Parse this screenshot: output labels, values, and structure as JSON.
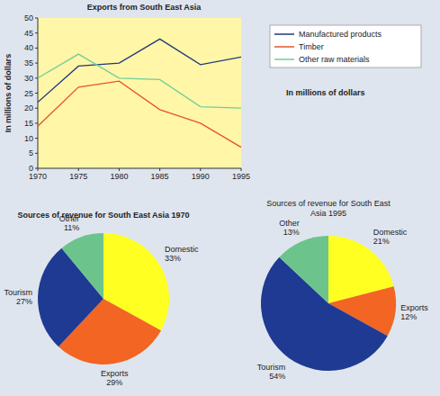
{
  "chart_data": [
    {
      "type": "line",
      "title": "Exports from South East Asia",
      "ylabel": "In millions of dollars",
      "annotation": "In millions of dollars",
      "x": [
        1970,
        1975,
        1980,
        1985,
        1990,
        1995
      ],
      "xlim": [
        1970,
        1995
      ],
      "xticks": [
        1970,
        1975,
        1980,
        1985,
        1990,
        1995
      ],
      "ylim": [
        0,
        50
      ],
      "yticks": [
        0,
        5,
        10,
        15,
        20,
        25,
        30,
        35,
        40,
        45,
        50
      ],
      "legend": "right",
      "series": [
        {
          "name": "Manufactured products",
          "color": "#1f3a7a",
          "values": [
            22,
            34,
            35,
            43,
            34.5,
            37
          ]
        },
        {
          "name": "Timber",
          "color": "#e8542a",
          "values": [
            14,
            27,
            29,
            19.5,
            15,
            7
          ]
        },
        {
          "name": "Other raw materials",
          "color": "#6fcf97",
          "values": [
            30,
            38,
            30,
            29.5,
            20.5,
            20
          ]
        }
      ]
    },
    {
      "type": "pie",
      "title": "Sources of revenue for South East Asia 1970",
      "categories": [
        "Domestic",
        "Exports",
        "Tourism",
        "Other"
      ],
      "values": [
        33,
        29,
        27,
        11
      ],
      "value_labels": [
        "33%",
        "29%",
        "27%",
        "11%"
      ],
      "colors": [
        "#ffff22",
        "#f26522",
        "#1f3a93",
        "#6cc48c"
      ],
      "data_labels": true
    },
    {
      "type": "pie",
      "title": "Sources of revenue for South East Asia 1995",
      "categories": [
        "Domestic",
        "Exports",
        "Tourism",
        "Other"
      ],
      "values": [
        21,
        12,
        54,
        13
      ],
      "value_labels": [
        "21%",
        "12%",
        "54%",
        "13%"
      ],
      "colors": [
        "#ffff22",
        "#f26522",
        "#1f3a93",
        "#6cc48c"
      ],
      "data_labels": true
    }
  ]
}
